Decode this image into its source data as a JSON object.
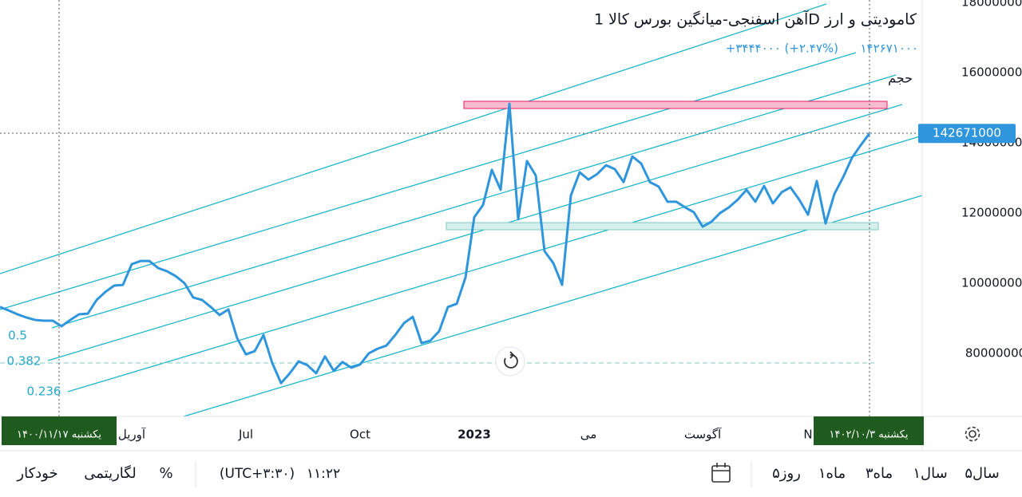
{
  "chart_data": {
    "type": "line",
    "title": "آهن اسفنجی-میانگین بورس کالا 1D کامودیتی و ارز",
    "last_price": "۱۴۲۶۷۱۰۰۰",
    "change": "+۳۴۴۴۰۰۰ (+۲.۴۷%)",
    "volume_label": "حجم",
    "color": "#2f95dc",
    "categories": [
      null,
      null,
      null,
      null,
      null,
      null,
      null,
      null,
      null,
      null,
      null,
      null,
      null,
      null,
      null,
      "آوریل",
      null,
      null,
      null,
      null,
      null,
      null,
      null,
      null,
      null,
      null,
      null,
      null,
      "Jul",
      null,
      null,
      null,
      null,
      null,
      null,
      null,
      null,
      null,
      null,
      null,
      null,
      "Oct",
      null,
      null,
      null,
      null,
      null,
      null,
      null,
      null,
      null,
      null,
      null,
      null,
      "2023",
      null,
      null,
      null,
      null,
      null,
      null,
      null,
      null,
      null,
      null,
      null,
      null,
      "می",
      null,
      null,
      null,
      null,
      null,
      null,
      null,
      null,
      null,
      null,
      null,
      null,
      "آگوست",
      null,
      null,
      null,
      null,
      null,
      null,
      null,
      null,
      null,
      null,
      null,
      "N",
      null,
      null,
      null,
      null,
      null,
      null,
      null
    ],
    "values": [
      93200000,
      92200000,
      91100000,
      90200000,
      89500000,
      89300000,
      89300000,
      87700000,
      89500000,
      91100000,
      91300000,
      95200000,
      97500000,
      99300000,
      99500000,
      105400000,
      106300000,
      106300000,
      104300000,
      103400000,
      102000000,
      100000000,
      95900000,
      95200000,
      93200000,
      90900000,
      92500000,
      84300000,
      79700000,
      80600000,
      85200000,
      77200000,
      71500000,
      74300000,
      77700000,
      76600000,
      74300000,
      79100000,
      75000000,
      77500000,
      75900000,
      76800000,
      80000000,
      81300000,
      82200000,
      85200000,
      88600000,
      90400000,
      82900000,
      83600000,
      86300000,
      93200000,
      94100000,
      101600000,
      118800000,
      122300000,
      132300000,
      126600000,
      151100000,
      118200000,
      134800000,
      130700000,
      109100000,
      105700000,
      99500000,
      125000000,
      131600000,
      129500000,
      131100000,
      133600000,
      132500000,
      128800000,
      136100000,
      134100000,
      128800000,
      127500000,
      123200000,
      123200000,
      121600000,
      120200000,
      116100000,
      117500000,
      120000000,
      121600000,
      123800000,
      126600000,
      123200000,
      127700000,
      122700000,
      125900000,
      127300000,
      123800000,
      119500000,
      129100000,
      117000000,
      125400000,
      130200000,
      135700000,
      139300000,
      142671000
    ],
    "ylim": [
      62000000,
      180700000
    ],
    "yticks": [
      80000000,
      100000000,
      120000000,
      140000000,
      160000000,
      180000000
    ],
    "grid": false,
    "fib_levels": [
      0.5,
      0.382,
      0.236
    ],
    "crosshair_start": "یکشنبه ۱۴۰۰/۱۱/۱۷",
    "crosshair_end": "یکشنبه ۱۴۰۲/۱۰/۳"
  },
  "toolbar": {
    "ranges": [
      "۵سال",
      "۱سال",
      "۳ماه",
      "۱ماه",
      "۵روز"
    ],
    "time": "۱۱:۲۲",
    "timezone": "(UTC+۳:۳۰)",
    "percent": "%",
    "log": "لگاریتمی",
    "auto": "خودکار"
  }
}
